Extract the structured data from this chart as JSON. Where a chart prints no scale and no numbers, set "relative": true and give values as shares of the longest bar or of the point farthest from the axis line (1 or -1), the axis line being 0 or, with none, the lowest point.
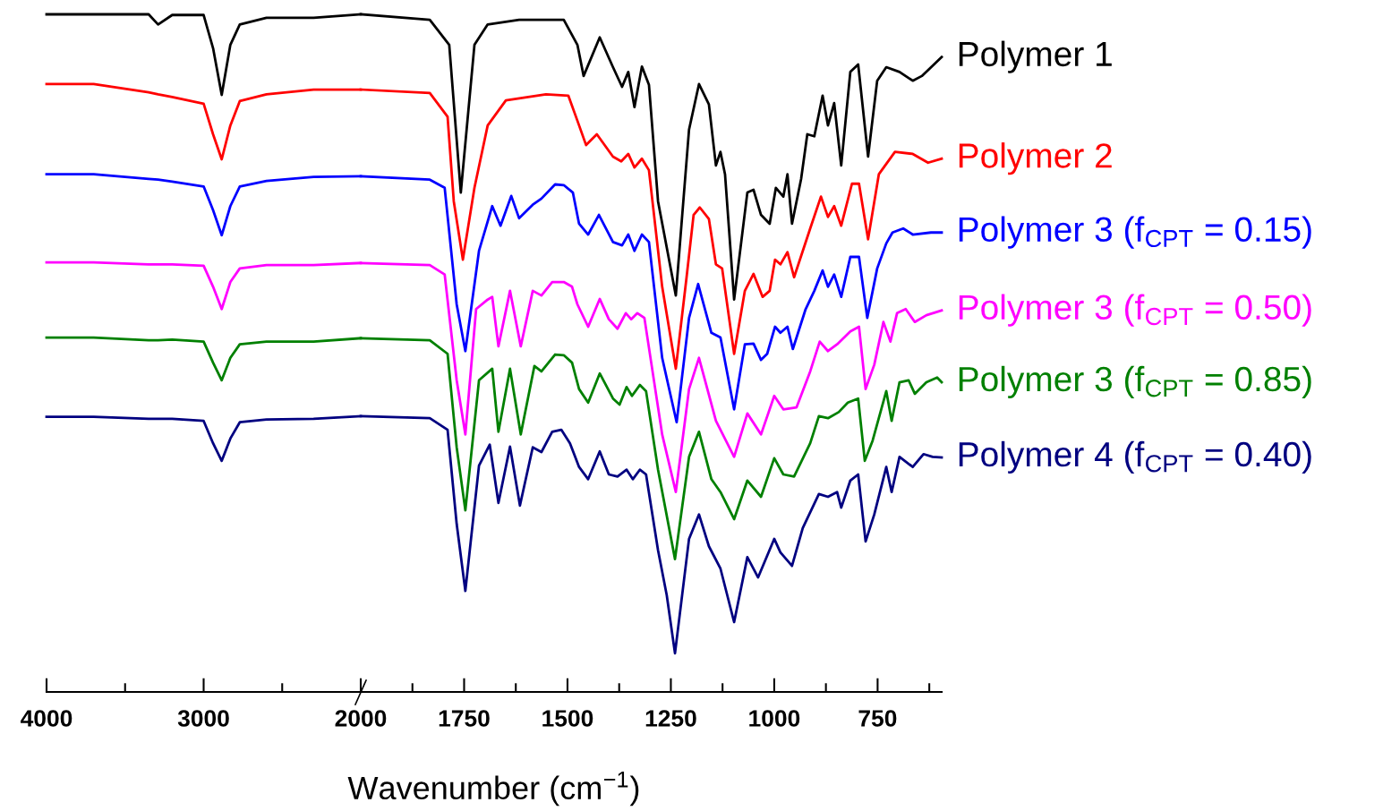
{
  "chart_data": [
    {
      "type": "line",
      "relative": true,
      "tick_labels": "x",
      "xlim": [
        4000,
        2000
      ],
      "xticks": [
        4000,
        {
          "value": 3500,
          "label": null
        },
        3000,
        {
          "value": 2500,
          "label": null
        },
        2000
      ],
      "series": [
        {
          "color": "#000000",
          "x": [
            4000,
            3700,
            3350,
            3290,
            3200,
            3000,
            2940,
            2885,
            2830,
            2770,
            2600,
            2300,
            2000
          ],
          "values": [
            1.0,
            1.0,
            1.0,
            0.985,
            0.999,
            0.999,
            0.95,
            0.881,
            0.955,
            0.985,
            0.995,
            0.995,
            1.0
          ]
        },
        {
          "color": "#ff0000",
          "x": [
            4000,
            3700,
            3350,
            3290,
            3200,
            3000,
            2940,
            2885,
            2830,
            2770,
            2600,
            2300,
            2000
          ],
          "values": [
            0.897,
            0.897,
            0.885,
            0.882,
            0.878,
            0.868,
            0.823,
            0.786,
            0.836,
            0.872,
            0.882,
            0.889,
            0.889
          ]
        },
        {
          "color": "#0000ff",
          "x": [
            4000,
            3700,
            3350,
            3290,
            3200,
            3000,
            2940,
            2885,
            2830,
            2770,
            2600,
            2300,
            2000
          ],
          "values": [
            0.764,
            0.764,
            0.757,
            0.756,
            0.753,
            0.746,
            0.711,
            0.674,
            0.717,
            0.746,
            0.754,
            0.76,
            0.761
          ]
        },
        {
          "color": "#ff00ff",
          "x": [
            4000,
            3700,
            3350,
            3290,
            3200,
            3000,
            2940,
            2885,
            2830,
            2770,
            2600,
            2300,
            2000
          ],
          "values": [
            0.634,
            0.634,
            0.631,
            0.631,
            0.631,
            0.629,
            0.598,
            0.565,
            0.605,
            0.625,
            0.63,
            0.63,
            0.633
          ]
        },
        {
          "color": "#008000",
          "x": [
            4000,
            3700,
            3350,
            3290,
            3200,
            3000,
            2940,
            2885,
            2830,
            2770,
            2600,
            2300,
            2000
          ],
          "values": [
            0.523,
            0.523,
            0.519,
            0.519,
            0.52,
            0.517,
            0.486,
            0.46,
            0.493,
            0.513,
            0.517,
            0.517,
            0.522
          ]
        },
        {
          "color": "#000080",
          "x": [
            4000,
            3700,
            3350,
            3290,
            3200,
            3000,
            2940,
            2885,
            2830,
            2770,
            2600,
            2300,
            2000
          ],
          "values": [
            0.406,
            0.406,
            0.403,
            0.403,
            0.403,
            0.4,
            0.367,
            0.341,
            0.374,
            0.398,
            0.402,
            0.403,
            0.407
          ]
        }
      ]
    },
    {
      "type": "line",
      "relative": true,
      "tick_labels": "x",
      "xlim": [
        2000,
        595
      ],
      "xlabel": "Wavenumber (cm$^{−1}$)",
      "xticks": [
        {
          "value": 1875,
          "label": null
        },
        1750,
        {
          "value": 1625,
          "label": null
        },
        1500,
        {
          "value": 1375,
          "label": null
        },
        1250,
        {
          "value": 1125,
          "label": null
        },
        1000,
        {
          "value": 875,
          "label": null
        },
        750,
        {
          "value": 625,
          "label": null
        }
      ],
      "series": [
        {
          "name": "Polymer 1",
          "color": "#000000",
          "x": [
            2000,
            1833,
            1786,
            1758,
            1725,
            1693,
            1617,
            1509,
            1476,
            1461,
            1422,
            1390,
            1368,
            1353,
            1338,
            1320,
            1303,
            1281,
            1238,
            1206,
            1182,
            1158,
            1141,
            1130,
            1119,
            1097,
            1065,
            1050,
            1032,
            1011,
            996,
            978,
            968,
            957,
            935,
            920,
            903,
            883,
            870,
            855,
            838,
            816,
            797,
            773,
            751,
            729,
            697,
            665,
            643,
            595
          ],
          "values": [
            1.0,
            0.992,
            0.955,
            0.737,
            0.955,
            0.985,
            0.992,
            0.992,
            0.955,
            0.909,
            0.966,
            0.922,
            0.893,
            0.915,
            0.863,
            0.923,
            0.896,
            0.724,
            0.585,
            0.83,
            0.897,
            0.867,
            0.777,
            0.797,
            0.764,
            0.579,
            0.737,
            0.741,
            0.704,
            0.691,
            0.744,
            0.731,
            0.764,
            0.691,
            0.757,
            0.823,
            0.82,
            0.88,
            0.836,
            0.869,
            0.777,
            0.915,
            0.926,
            0.79,
            0.902,
            0.922,
            0.915,
            0.902,
            0.909,
            0.937
          ]
        },
        {
          "name": "Polymer 2",
          "color": "#ff0000",
          "x": [
            2000,
            1833,
            1790,
            1775,
            1753,
            1725,
            1693,
            1649,
            1552,
            1498,
            1476,
            1455,
            1429,
            1390,
            1370,
            1353,
            1338,
            1320,
            1303,
            1271,
            1238,
            1212,
            1195,
            1180,
            1158,
            1141,
            1126,
            1097,
            1071,
            1050,
            1028,
            1011,
            998,
            985,
            968,
            952,
            913,
            887,
            870,
            855,
            838,
            812,
            795,
            773,
            747,
            708,
            665,
            628,
            595
          ],
          "values": [
            0.889,
            0.884,
            0.849,
            0.724,
            0.638,
            0.744,
            0.836,
            0.873,
            0.882,
            0.88,
            0.843,
            0.807,
            0.823,
            0.79,
            0.783,
            0.794,
            0.774,
            0.787,
            0.77,
            0.598,
            0.477,
            0.612,
            0.704,
            0.715,
            0.698,
            0.631,
            0.625,
            0.499,
            0.592,
            0.617,
            0.583,
            0.592,
            0.638,
            0.631,
            0.649,
            0.612,
            0.684,
            0.731,
            0.701,
            0.717,
            0.688,
            0.75,
            0.75,
            0.668,
            0.764,
            0.797,
            0.794,
            0.781,
            0.787
          ]
        },
        {
          "name": "Polymer 3 (f$_{CPT}$ = 0.15)",
          "color": "#0000ff",
          "x": [
            2000,
            1833,
            1797,
            1768,
            1747,
            1714,
            1682,
            1662,
            1636,
            1617,
            1584,
            1563,
            1530,
            1509,
            1487,
            1472,
            1450,
            1424,
            1390,
            1368,
            1353,
            1338,
            1320,
            1303,
            1271,
            1236,
            1206,
            1184,
            1152,
            1130,
            1097,
            1071,
            1050,
            1032,
            1017,
            998,
            985,
            968,
            955,
            924,
            903,
            883,
            870,
            855,
            838,
            816,
            795,
            775,
            751,
            729,
            714,
            688,
            665,
            621,
            595
          ],
          "values": [
            0.761,
            0.756,
            0.744,
            0.572,
            0.503,
            0.651,
            0.717,
            0.688,
            0.732,
            0.699,
            0.719,
            0.728,
            0.749,
            0.748,
            0.737,
            0.691,
            0.675,
            0.704,
            0.664,
            0.659,
            0.675,
            0.651,
            0.675,
            0.664,
            0.493,
            0.398,
            0.552,
            0.602,
            0.53,
            0.523,
            0.417,
            0.513,
            0.514,
            0.49,
            0.499,
            0.539,
            0.53,
            0.539,
            0.506,
            0.565,
            0.592,
            0.622,
            0.598,
            0.616,
            0.583,
            0.642,
            0.642,
            0.552,
            0.625,
            0.662,
            0.678,
            0.684,
            0.675,
            0.678,
            0.678
          ]
        },
        {
          "name": "Polymer 3 (f$_{CPT}$ = 0.50)",
          "color": "#ff00ff",
          "x": [
            2000,
            1833,
            1797,
            1768,
            1747,
            1721,
            1693,
            1682,
            1667,
            1639,
            1613,
            1584,
            1563,
            1537,
            1509,
            1489,
            1476,
            1450,
            1422,
            1400,
            1379,
            1359,
            1346,
            1331,
            1314,
            1271,
            1238,
            1206,
            1182,
            1141,
            1097,
            1065,
            1032,
            1000,
            978,
            946,
            913,
            890,
            870,
            848,
            816,
            795,
            779,
            758,
            736,
            719,
            703,
            682,
            660,
            632,
            595
          ],
          "values": [
            0.633,
            0.63,
            0.616,
            0.46,
            0.38,
            0.565,
            0.579,
            0.583,
            0.51,
            0.592,
            0.51,
            0.592,
            0.585,
            0.605,
            0.605,
            0.598,
            0.572,
            0.539,
            0.58,
            0.55,
            0.536,
            0.559,
            0.55,
            0.559,
            0.552,
            0.38,
            0.295,
            0.447,
            0.493,
            0.4,
            0.347,
            0.411,
            0.38,
            0.437,
            0.417,
            0.42,
            0.473,
            0.517,
            0.503,
            0.513,
            0.532,
            0.539,
            0.447,
            0.483,
            0.546,
            0.517,
            0.559,
            0.565,
            0.546,
            0.556,
            0.563
          ]
        },
        {
          "name": "Polymer 3 (f$_{CPT}$ = 0.85)",
          "color": "#008000",
          "x": [
            2000,
            1833,
            1790,
            1768,
            1747,
            1714,
            1682,
            1667,
            1639,
            1613,
            1580,
            1563,
            1530,
            1509,
            1489,
            1472,
            1450,
            1422,
            1390,
            1374,
            1357,
            1344,
            1325,
            1310,
            1281,
            1240,
            1206,
            1182,
            1152,
            1130,
            1097,
            1065,
            1032,
            1000,
            978,
            952,
            913,
            892,
            870,
            844,
            822,
            797,
            781,
            762,
            729,
            716,
            697,
            675,
            660,
            632,
            606,
            595
          ],
          "values": [
            0.522,
            0.519,
            0.499,
            0.361,
            0.268,
            0.46,
            0.477,
            0.384,
            0.477,
            0.38,
            0.481,
            0.473,
            0.498,
            0.497,
            0.486,
            0.447,
            0.427,
            0.47,
            0.433,
            0.424,
            0.45,
            0.437,
            0.453,
            0.444,
            0.328,
            0.196,
            0.347,
            0.384,
            0.314,
            0.295,
            0.255,
            0.312,
            0.288,
            0.345,
            0.321,
            0.318,
            0.367,
            0.407,
            0.404,
            0.413,
            0.427,
            0.433,
            0.341,
            0.371,
            0.444,
            0.4,
            0.457,
            0.46,
            0.44,
            0.457,
            0.464,
            0.457
          ]
        },
        {
          "name": "Polymer 4 (f$_{CPT}$ = 0.40)",
          "color": "#000080",
          "x": [
            2000,
            1833,
            1790,
            1768,
            1747,
            1714,
            1688,
            1667,
            1639,
            1615,
            1584,
            1563,
            1537,
            1515,
            1494,
            1472,
            1450,
            1422,
            1400,
            1379,
            1357,
            1342,
            1325,
            1310,
            1281,
            1260,
            1240,
            1206,
            1182,
            1158,
            1130,
            1097,
            1065,
            1039,
            1000,
            985,
            957,
            931,
            892,
            870,
            848,
            838,
            816,
            797,
            779,
            758,
            729,
            716,
            697,
            665,
            639,
            617,
            595
          ],
          "values": [
            0.407,
            0.404,
            0.387,
            0.248,
            0.149,
            0.334,
            0.365,
            0.279,
            0.362,
            0.275,
            0.361,
            0.354,
            0.384,
            0.387,
            0.367,
            0.332,
            0.314,
            0.355,
            0.321,
            0.318,
            0.328,
            0.314,
            0.328,
            0.321,
            0.209,
            0.143,
            0.057,
            0.226,
            0.262,
            0.215,
            0.182,
            0.103,
            0.199,
            0.169,
            0.226,
            0.206,
            0.186,
            0.242,
            0.292,
            0.288,
            0.295,
            0.272,
            0.312,
            0.321,
            0.222,
            0.262,
            0.332,
            0.295,
            0.347,
            0.332,
            0.351,
            0.347,
            0.346
          ]
        }
      ]
    }
  ]
}
